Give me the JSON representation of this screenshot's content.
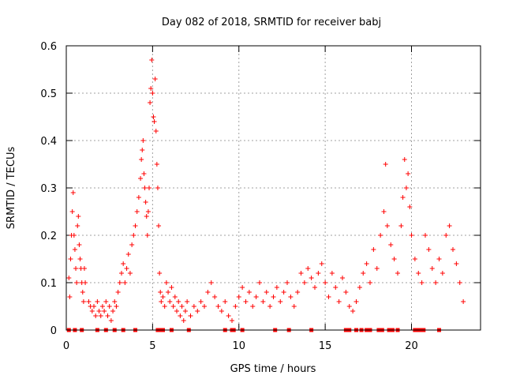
{
  "chart_data": {
    "type": "scatter",
    "title": "Day 082 of 2018, SRMTID for receiver babj",
    "xlabel": "GPS time / hours",
    "ylabel": "SRMTID / TECUs",
    "xlim": [
      0,
      24
    ],
    "ylim": [
      0,
      0.6
    ],
    "xticks": [
      0,
      5,
      10,
      15,
      20
    ],
    "xtick_labels": [
      "0",
      "5",
      "10",
      "15",
      "20"
    ],
    "yticks": [
      0,
      0.1,
      0.2,
      0.3,
      0.4,
      0.5,
      0.6
    ],
    "ytick_labels": [
      "0",
      "0.1",
      "0.2",
      "0.3",
      "0.4",
      "0.5",
      "0.6"
    ],
    "grid": true,
    "marker": "+",
    "color": "#ff0000",
    "series": [
      {
        "name": "SRMTID",
        "points": [
          [
            0.15,
            0.11
          ],
          [
            0.2,
            0.07
          ],
          [
            0.25,
            0.15
          ],
          [
            0.3,
            0.2
          ],
          [
            0.35,
            0.25
          ],
          [
            0.4,
            0.29
          ],
          [
            0.45,
            0.2
          ],
          [
            0.5,
            0.17
          ],
          [
            0.55,
            0.13
          ],
          [
            0.6,
            0.1
          ],
          [
            0.65,
            0.22
          ],
          [
            0.7,
            0.24
          ],
          [
            0.75,
            0.18
          ],
          [
            0.8,
            0.15
          ],
          [
            0.85,
            0.13
          ],
          [
            0.9,
            0.1
          ],
          [
            0.95,
            0.08
          ],
          [
            1.0,
            0.06
          ],
          [
            1.05,
            0.13
          ],
          [
            1.1,
            0.1
          ],
          [
            1.3,
            0.06
          ],
          [
            1.4,
            0.05
          ],
          [
            1.5,
            0.04
          ],
          [
            1.6,
            0.05
          ],
          [
            1.7,
            0.03
          ],
          [
            1.8,
            0.06
          ],
          [
            1.9,
            0.04
          ],
          [
            2.0,
            0.03
          ],
          [
            2.1,
            0.05
          ],
          [
            2.2,
            0.04
          ],
          [
            2.3,
            0.06
          ],
          [
            2.4,
            0.03
          ],
          [
            2.5,
            0.05
          ],
          [
            2.6,
            0.02
          ],
          [
            2.7,
            0.04
          ],
          [
            2.8,
            0.06
          ],
          [
            2.9,
            0.05
          ],
          [
            3.0,
            0.08
          ],
          [
            3.1,
            0.1
          ],
          [
            3.2,
            0.12
          ],
          [
            3.3,
            0.14
          ],
          [
            3.4,
            0.1
          ],
          [
            3.5,
            0.13
          ],
          [
            3.6,
            0.16
          ],
          [
            3.7,
            0.12
          ],
          [
            3.8,
            0.18
          ],
          [
            3.9,
            0.2
          ],
          [
            4.0,
            0.22
          ],
          [
            4.1,
            0.25
          ],
          [
            4.2,
            0.28
          ],
          [
            4.3,
            0.32
          ],
          [
            4.35,
            0.36
          ],
          [
            4.4,
            0.38
          ],
          [
            4.45,
            0.4
          ],
          [
            4.5,
            0.33
          ],
          [
            4.55,
            0.3
          ],
          [
            4.6,
            0.27
          ],
          [
            4.65,
            0.24
          ],
          [
            4.7,
            0.2
          ],
          [
            4.75,
            0.25
          ],
          [
            4.8,
            0.3
          ],
          [
            4.85,
            0.48
          ],
          [
            4.9,
            0.51
          ],
          [
            4.95,
            0.57
          ],
          [
            5.0,
            0.5
          ],
          [
            5.05,
            0.45
          ],
          [
            5.1,
            0.44
          ],
          [
            5.15,
            0.53
          ],
          [
            5.2,
            0.42
          ],
          [
            5.25,
            0.35
          ],
          [
            5.3,
            0.3
          ],
          [
            5.35,
            0.22
          ],
          [
            5.4,
            0.12
          ],
          [
            5.45,
            0.08
          ],
          [
            5.5,
            0.06
          ],
          [
            5.6,
            0.07
          ],
          [
            5.7,
            0.05
          ],
          [
            5.8,
            0.1
          ],
          [
            5.9,
            0.08
          ],
          [
            6.0,
            0.06
          ],
          [
            6.1,
            0.09
          ],
          [
            6.2,
            0.05
          ],
          [
            6.3,
            0.07
          ],
          [
            6.4,
            0.04
          ],
          [
            6.5,
            0.06
          ],
          [
            6.6,
            0.03
          ],
          [
            6.7,
            0.05
          ],
          [
            6.8,
            0.02
          ],
          [
            6.9,
            0.04
          ],
          [
            7.0,
            0.06
          ],
          [
            7.2,
            0.03
          ],
          [
            7.4,
            0.05
          ],
          [
            7.6,
            0.04
          ],
          [
            7.8,
            0.06
          ],
          [
            8.0,
            0.05
          ],
          [
            8.2,
            0.08
          ],
          [
            8.4,
            0.1
          ],
          [
            8.6,
            0.07
          ],
          [
            8.8,
            0.05
          ],
          [
            9.0,
            0.04
          ],
          [
            9.2,
            0.06
          ],
          [
            9.4,
            0.03
          ],
          [
            9.6,
            0.02
          ],
          [
            9.8,
            0.05
          ],
          [
            10.0,
            0.07
          ],
          [
            10.2,
            0.09
          ],
          [
            10.4,
            0.06
          ],
          [
            10.6,
            0.08
          ],
          [
            10.8,
            0.05
          ],
          [
            11.0,
            0.07
          ],
          [
            11.2,
            0.1
          ],
          [
            11.4,
            0.06
          ],
          [
            11.6,
            0.08
          ],
          [
            11.8,
            0.05
          ],
          [
            12.0,
            0.07
          ],
          [
            12.2,
            0.09
          ],
          [
            12.4,
            0.06
          ],
          [
            12.6,
            0.08
          ],
          [
            12.8,
            0.1
          ],
          [
            13.0,
            0.07
          ],
          [
            13.2,
            0.05
          ],
          [
            13.4,
            0.08
          ],
          [
            13.6,
            0.12
          ],
          [
            13.8,
            0.1
          ],
          [
            14.0,
            0.13
          ],
          [
            14.2,
            0.11
          ],
          [
            14.4,
            0.09
          ],
          [
            14.6,
            0.12
          ],
          [
            14.8,
            0.14
          ],
          [
            15.0,
            0.1
          ],
          [
            15.2,
            0.07
          ],
          [
            15.4,
            0.12
          ],
          [
            15.6,
            0.09
          ],
          [
            15.8,
            0.06
          ],
          [
            16.0,
            0.11
          ],
          [
            16.2,
            0.08
          ],
          [
            16.4,
            0.05
          ],
          [
            16.6,
            0.04
          ],
          [
            16.8,
            0.06
          ],
          [
            17.0,
            0.09
          ],
          [
            17.2,
            0.12
          ],
          [
            17.4,
            0.14
          ],
          [
            17.6,
            0.1
          ],
          [
            17.8,
            0.17
          ],
          [
            18.0,
            0.13
          ],
          [
            18.2,
            0.2
          ],
          [
            18.4,
            0.25
          ],
          [
            18.5,
            0.35
          ],
          [
            18.6,
            0.22
          ],
          [
            18.8,
            0.18
          ],
          [
            19.0,
            0.15
          ],
          [
            19.2,
            0.12
          ],
          [
            19.4,
            0.22
          ],
          [
            19.5,
            0.28
          ],
          [
            19.6,
            0.36
          ],
          [
            19.7,
            0.3
          ],
          [
            19.8,
            0.33
          ],
          [
            19.9,
            0.26
          ],
          [
            20.0,
            0.2
          ],
          [
            20.2,
            0.15
          ],
          [
            20.4,
            0.12
          ],
          [
            20.6,
            0.1
          ],
          [
            20.8,
            0.2
          ],
          [
            21.0,
            0.17
          ],
          [
            21.2,
            0.13
          ],
          [
            21.4,
            0.1
          ],
          [
            21.6,
            0.15
          ],
          [
            21.8,
            0.12
          ],
          [
            22.0,
            0.2
          ],
          [
            22.2,
            0.22
          ],
          [
            22.4,
            0.17
          ],
          [
            22.6,
            0.14
          ],
          [
            22.8,
            0.1
          ],
          [
            23.0,
            0.06
          ]
        ]
      }
    ],
    "baseline_markers": [
      0.15,
      0.5,
      0.9,
      1.8,
      2.3,
      2.8,
      3.3,
      4.0,
      5.3,
      5.5,
      5.6,
      6.1,
      7.1,
      9.2,
      9.6,
      9.7,
      10.2,
      12.1,
      12.9,
      14.2,
      16.2,
      16.4,
      16.8,
      17.1,
      17.4,
      17.6,
      18.1,
      18.3,
      18.7,
      18.9,
      19.2,
      20.2,
      20.4,
      20.6,
      20.7,
      21.6
    ]
  }
}
